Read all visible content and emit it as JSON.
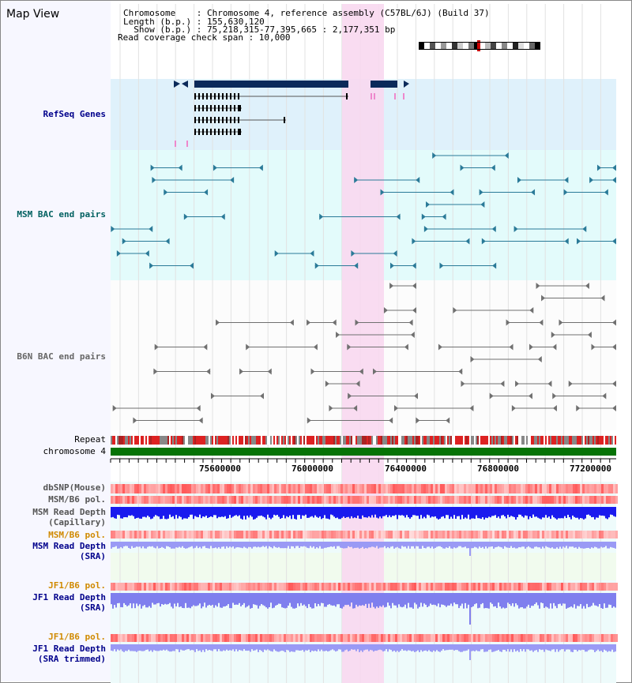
{
  "title": "Map View",
  "info": {
    "chromosome": "Chromosome    : Chromosome 4, reference assembly (C57BL/6J) (Build 37)",
    "length": "Length (b.p.) : 155,630,120",
    "show": "  Show (b.p.) : 75,218,315-77,395,665 : 2,177,351 bp",
    "coverage": "Read coverage check span : 10,000"
  },
  "tracks": {
    "refseq": "RefSeq Genes",
    "msm_bac": "MSM BAC end pairs",
    "b6n_bac": "B6N BAC end pairs",
    "repeat": "Repeat",
    "chromosome": "chromosome 4",
    "dbsnp": "dbSNP(Mouse)",
    "msm_pol": "MSM/B6 pol.",
    "msm_depth_cap_1": "MSM Read Depth",
    "msm_depth_cap_2": "(Capillary)",
    "msm_pol_sra": "MSM/B6 pol.",
    "msm_depth_sra_1": "MSM Read Depth",
    "msm_depth_sra_2": "(SRA)",
    "jf1_pol": "JF1/B6 pol.",
    "jf1_depth_1": "JF1 Read Depth",
    "jf1_depth_2": "(SRA)",
    "jf1_pol_trim": "JF1/B6 pol.",
    "jf1_trim_1": "JF1 Read Depth",
    "jf1_trim_2": "(SRA trimmed)"
  },
  "axis_ticks": [
    "75600000",
    "76000000",
    "76400000",
    "76800000",
    "77200000"
  ],
  "colors": {
    "refseq_bg": "#dff1fb",
    "msm_bg": "#e3fbfb",
    "highlight": "#f8d8f0",
    "gene_dark": "#0b2a5a",
    "msm_pair": "#2a7a98",
    "b6n_pair": "#707070",
    "chromosome_bar": "#067306",
    "label_navy": "#00008b",
    "label_teal": "#006060",
    "label_orange": "#d08a00"
  }
}
